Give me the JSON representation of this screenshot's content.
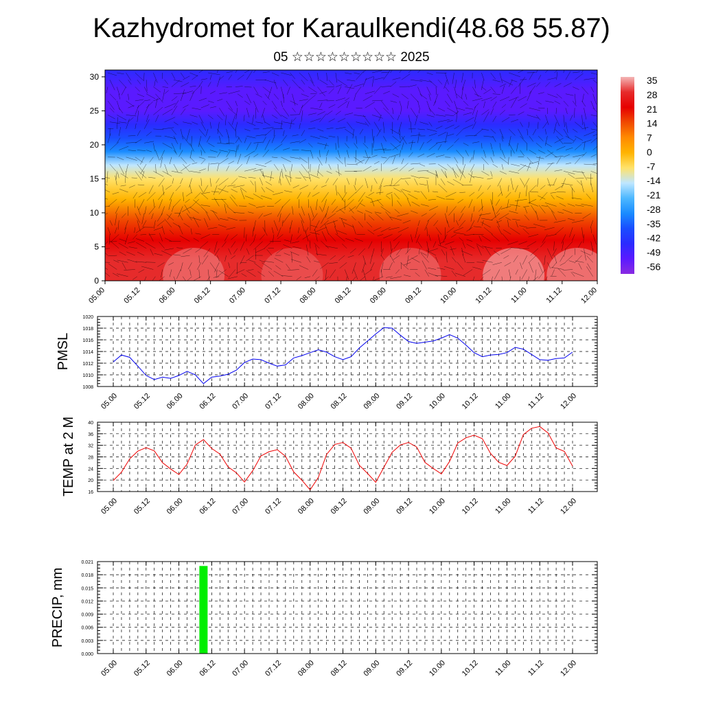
{
  "title": "Kazhydromet for Karaulkendi(48.68 55.87)",
  "subtitle": "05 ☆☆☆☆☆☆☆☆☆ 2025",
  "colors": {
    "pmsl_line": "#0000ee",
    "temp_line": "#ee0000",
    "precip_bar": "#00ee00",
    "vector_color": "#000000"
  },
  "time_ticks": [
    "05.00",
    "05.12",
    "06.00",
    "06.12",
    "07.00",
    "07.12",
    "08.00",
    "08.12",
    "09.00",
    "09.12",
    "10.00",
    "10.12",
    "11.00",
    "11.12",
    "12.00"
  ],
  "chart_data": [
    {
      "type": "heatmap",
      "description_of_axes": "time vs height",
      "x_ticks": [
        "05.00",
        "05.12",
        "06.00",
        "06.12",
        "07.00",
        "07.12",
        "08.00",
        "08.12",
        "09.00",
        "09.12",
        "10.00",
        "10.12",
        "11.00",
        "11.12",
        "12.00"
      ],
      "y_ticks": [
        "0",
        "5",
        "10",
        "15",
        "20",
        "25",
        "30"
      ],
      "ylim": [
        0,
        31
      ],
      "colorbar_labels": [
        "35",
        "28",
        "21",
        "14",
        "7",
        "0",
        "-7",
        "-14",
        "-21",
        "-28",
        "-35",
        "-42",
        "-49",
        "-56"
      ],
      "colorbar_colors": [
        "#f4b6b6",
        "#e62b2b",
        "#e60000",
        "#f04a00",
        "#ff8a00",
        "#ffb400",
        "#ffe26a",
        "#bfe6ff",
        "#4db8ff",
        "#1a8cff",
        "#1a4dff",
        "#2b2bff",
        "#5a1aff",
        "#8a2be2"
      ],
      "temperature_profile_by_height": [
        {
          "h": 0,
          "t": 30
        },
        {
          "h": 3,
          "t": 28
        },
        {
          "h": 6,
          "t": 22
        },
        {
          "h": 9,
          "t": 12
        },
        {
          "h": 12,
          "t": 2
        },
        {
          "h": 15,
          "t": -8
        },
        {
          "h": 17,
          "t": -14
        },
        {
          "h": 19,
          "t": -25
        },
        {
          "h": 21,
          "t": -35
        },
        {
          "h": 23,
          "t": -45
        },
        {
          "h": 25,
          "t": -52
        },
        {
          "h": 28,
          "t": -46
        },
        {
          "h": 31,
          "t": -42
        }
      ],
      "wind_vectors_overlay": true
    },
    {
      "type": "line",
      "ylabel": "PMSL",
      "x_ticks": [
        "05.00",
        "05.12",
        "06.00",
        "06.12",
        "07.00",
        "07.12",
        "08.00",
        "08.12",
        "09.00",
        "09.12",
        "10.00",
        "10.12",
        "11.00",
        "11.12",
        "12.00"
      ],
      "y_ticks": [
        "1008",
        "1010",
        "1012",
        "1014",
        "1016",
        "1018",
        "1020"
      ],
      "ylim": [
        1008,
        1020
      ],
      "series": [
        {
          "values": [
            1012.2,
            1013.4,
            1013.0,
            1011.5,
            1009.9,
            1009.2,
            1009.6,
            1009.4,
            1009.9,
            1010.6,
            1010.0,
            1008.5,
            1009.6,
            1009.8,
            1010.1,
            1010.8,
            1012.1,
            1012.7,
            1012.6,
            1012.0,
            1011.5,
            1011.7,
            1012.9,
            1013.3,
            1013.8,
            1014.3,
            1013.9,
            1013.1,
            1012.6,
            1013.1,
            1014.6,
            1015.8,
            1017.0,
            1018.1,
            1018.0,
            1016.8,
            1015.7,
            1015.4,
            1015.6,
            1015.8,
            1016.3,
            1016.9,
            1016.3,
            1015.1,
            1013.8,
            1013.1,
            1013.4,
            1013.5,
            1013.8,
            1014.7,
            1014.4,
            1013.5,
            1012.6,
            1012.5,
            1012.8,
            1012.9,
            1013.9
          ]
        }
      ]
    },
    {
      "type": "line",
      "ylabel": "TEMP at 2 M",
      "x_ticks": [
        "05.00",
        "05.12",
        "06.00",
        "06.12",
        "07.00",
        "07.12",
        "08.00",
        "08.12",
        "09.00",
        "09.12",
        "10.00",
        "10.12",
        "11.00",
        "11.12",
        "12.00"
      ],
      "y_ticks": [
        "16",
        "20",
        "24",
        "28",
        "32",
        "36",
        "40"
      ],
      "ylim": [
        16,
        40
      ],
      "series": [
        {
          "values": [
            19.8,
            22.7,
            27.3,
            30.0,
            31.2,
            30.1,
            26.0,
            23.8,
            21.9,
            25.5,
            32.1,
            34.0,
            30.9,
            29.0,
            24.5,
            22.5,
            19.3,
            23.2,
            28.3,
            29.8,
            30.5,
            28.2,
            22.8,
            19.9,
            16.6,
            20.9,
            28.8,
            32.3,
            33.0,
            31.0,
            25.1,
            22.3,
            19.2,
            24.4,
            29.6,
            32.1,
            33.0,
            31.4,
            26.1,
            24.0,
            22.1,
            26.4,
            32.8,
            34.6,
            35.5,
            34.3,
            29.2,
            26.1,
            25.0,
            28.2,
            35.7,
            37.9,
            38.5,
            36.3,
            31.1,
            29.9,
            24.8
          ]
        }
      ]
    },
    {
      "type": "bar",
      "ylabel": "PRECIP, mm",
      "x_ticks": [
        "05.00",
        "05.12",
        "06.00",
        "06.12",
        "07.00",
        "07.12",
        "08.00",
        "08.12",
        "09.00",
        "09.12",
        "10.00",
        "10.12",
        "11.00",
        "11.12",
        "12.00"
      ],
      "y_ticks": [
        "0.000",
        "0.003",
        "0.006",
        "0.009",
        "0.012",
        "0.015",
        "0.018",
        "0.021"
      ],
      "ylim": [
        0,
        0.021
      ],
      "bars": [
        {
          "time": "06.09",
          "value": 0.02
        }
      ]
    }
  ]
}
